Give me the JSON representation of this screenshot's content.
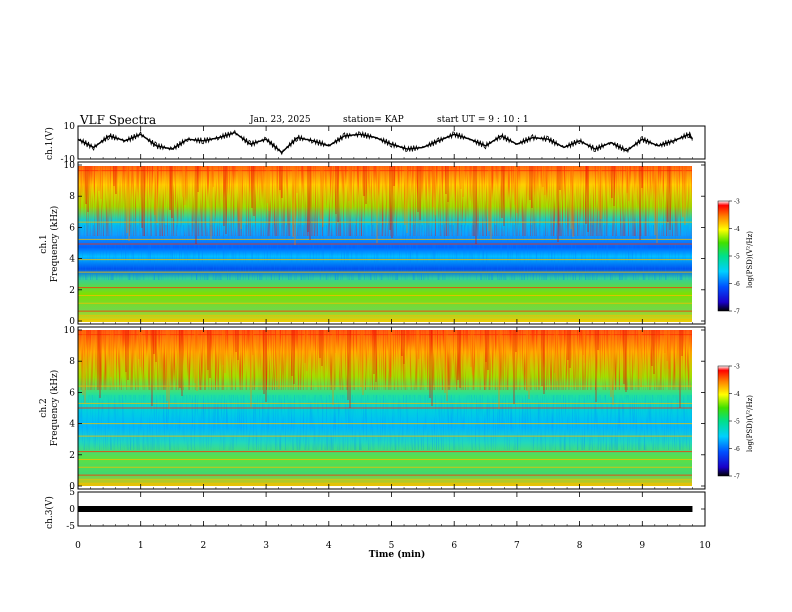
{
  "header": {
    "title": "VLF Spectra",
    "date": "Jan. 23, 2025",
    "station": "station= KAP",
    "start": "start  UT =   9 : 10 : 1"
  },
  "chart_data": [
    {
      "type": "line",
      "panel": "ch1-waveform",
      "ylabel": "ch.1(V)",
      "ylim": [
        -10,
        10
      ],
      "yticks": [
        "10",
        "-10"
      ],
      "xlim": [
        0,
        10
      ],
      "x": [
        0,
        0.25,
        0.5,
        0.75,
        1.0,
        1.25,
        1.5,
        1.75,
        2.0,
        2.25,
        2.5,
        2.75,
        3.0,
        3.25,
        3.5,
        3.75,
        4.0,
        4.25,
        4.5,
        4.75,
        5.0,
        5.25,
        5.5,
        5.75,
        6.0,
        6.25,
        6.5,
        6.75,
        7.0,
        7.25,
        7.5,
        7.75,
        8.0,
        8.25,
        8.5,
        8.75,
        9.0,
        9.25,
        9.5,
        9.75,
        9.8
      ],
      "values": [
        2,
        -3,
        4,
        1,
        5,
        -2,
        -4,
        2,
        1,
        3,
        6,
        -1,
        2,
        -6,
        3,
        1,
        -2,
        4,
        5,
        3,
        -1,
        -4,
        -3,
        1,
        5,
        2,
        -2,
        4,
        -1,
        3,
        2,
        -3,
        1,
        -4,
        0,
        -5,
        2,
        -2,
        1,
        5,
        2
      ],
      "color": "#000000"
    },
    {
      "type": "heatmap",
      "panel": "ch1-spectrogram",
      "ylabel": "ch.1\nFrequency (kHz)",
      "ylim": [
        0,
        10
      ],
      "yticks": [
        "10",
        "8",
        "6",
        "4",
        "2",
        "0"
      ],
      "xlim": [
        0,
        9.8
      ],
      "colorbar": {
        "label": "log(PSD)(V²/Hz)",
        "range": [
          -7,
          -3
        ],
        "ticks": [
          "-3",
          "-4",
          "-5",
          "-6",
          "-7"
        ]
      }
    },
    {
      "type": "heatmap",
      "panel": "ch2-spectrogram",
      "ylabel": "ch.2\nFrequency (kHz)",
      "ylim": [
        0,
        10
      ],
      "yticks": [
        "10",
        "8",
        "6",
        "4",
        "2",
        "0"
      ],
      "xlim": [
        0,
        9.8
      ],
      "colorbar": {
        "label": "log(PSD)(V²/Hz)",
        "range": [
          -7,
          -3
        ],
        "ticks": [
          "-3",
          "-4",
          "-5",
          "-6",
          "-7"
        ]
      }
    },
    {
      "type": "line",
      "panel": "ch3-waveform",
      "ylabel": "ch.3(V)",
      "ylim": [
        -5,
        5
      ],
      "yticks": [
        "5",
        "0",
        "-5"
      ],
      "xlim": [
        0,
        10
      ],
      "x": [
        0,
        9.8
      ],
      "values": [
        0,
        0
      ],
      "color": "#000000"
    }
  ],
  "xaxis": {
    "label": "Time (min)",
    "ticks": [
      "0",
      "1",
      "2",
      "3",
      "4",
      "5",
      "6",
      "7",
      "8",
      "9",
      "10"
    ],
    "range": [
      0,
      10
    ]
  }
}
